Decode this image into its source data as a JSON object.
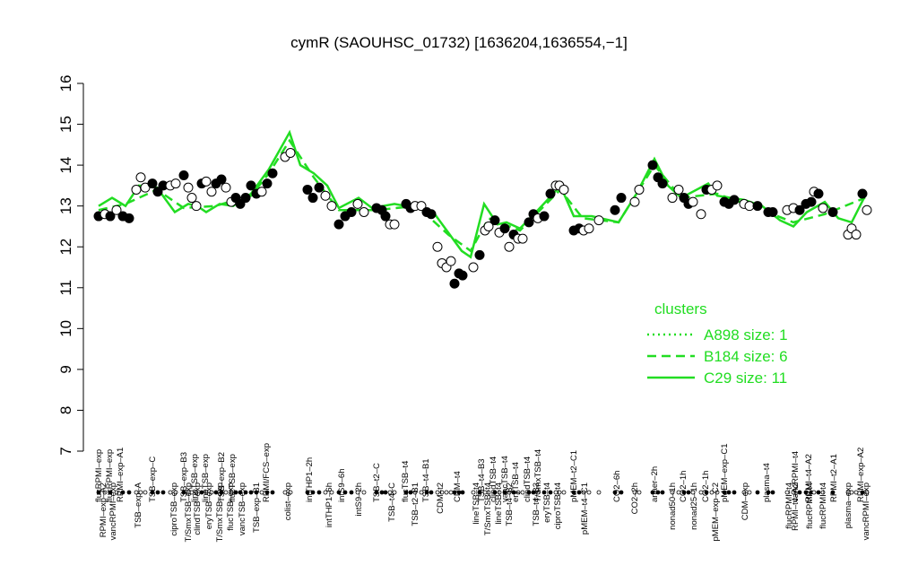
{
  "chart_data": {
    "type": "scatter",
    "title": "cymR (SAOUHSC_01732) [1636204,1636554,−1]",
    "xlim": [
      100,
      975
    ],
    "ylim": [
      7,
      16
    ],
    "yticks": [
      7,
      8,
      9,
      10,
      11,
      12,
      13,
      14,
      15,
      16
    ],
    "points": {
      "x": [
        110,
        117,
        123,
        130,
        137,
        144,
        152,
        157,
        162,
        170,
        176,
        182,
        190,
        196,
        205,
        210,
        214,
        219,
        225,
        230,
        236,
        241,
        247,
        252,
        258,
        263,
        268,
        274,
        280,
        286,
        292,
        298,
        304,
        318,
        324,
        343,
        349,
        356,
        363,
        370,
        378,
        385,
        392,
        399,
        406,
        420,
        426,
        430,
        435,
        440,
        453,
        458,
        463,
        470,
        476,
        481,
        488,
        493,
        498,
        503,
        507,
        512,
        516,
        528,
        535,
        541,
        545,
        552,
        557,
        563,
        568,
        573,
        578,
        583,
        590,
        595,
        600,
        607,
        614,
        620,
        624,
        629,
        640,
        646,
        651,
        657,
        668,
        686,
        693,
        708,
        713,
        728,
        734,
        739,
        750,
        757,
        763,
        768,
        773,
        782,
        788,
        794,
        800,
        808,
        813,
        819,
        830,
        836,
        845,
        857,
        862,
        878,
        885,
        892,
        899,
        905,
        908,
        913,
        918,
        929,
        946,
        950,
        955,
        962,
        967
      ],
      "values": [
        12.75,
        12.8,
        12.75,
        12.9,
        12.75,
        12.7,
        13.4,
        13.7,
        13.45,
        13.55,
        13.35,
        13.5,
        13.5,
        13.55,
        13.75,
        13.45,
        13.2,
        13.0,
        13.55,
        13.6,
        13.35,
        13.55,
        13.65,
        13.45,
        13.1,
        13.2,
        13.05,
        13.2,
        13.5,
        13.3,
        13.35,
        13.55,
        13.8,
        14.2,
        14.3,
        13.4,
        13.2,
        13.45,
        13.25,
        13.0,
        12.55,
        12.75,
        12.85,
        13.05,
        12.85,
        12.95,
        12.9,
        12.75,
        12.55,
        12.55,
        13.05,
        12.95,
        13.0,
        13.0,
        12.85,
        12.8,
        12.0,
        11.6,
        11.5,
        11.65,
        11.1,
        11.35,
        11.3,
        11.5,
        11.8,
        12.4,
        12.5,
        12.65,
        12.35,
        12.45,
        12.0,
        12.3,
        12.2,
        12.2,
        12.6,
        12.8,
        12.7,
        12.75,
        13.3,
        13.5,
        13.5,
        13.4,
        12.4,
        12.45,
        12.4,
        12.45,
        12.65,
        12.9,
        13.2,
        13.1,
        13.4,
        14.0,
        13.7,
        13.55,
        13.2,
        13.4,
        13.2,
        13.05,
        13.1,
        12.8,
        13.4,
        13.4,
        13.5,
        13.1,
        13.05,
        13.15,
        13.05,
        13.0,
        13.0,
        12.85,
        12.85,
        12.9,
        12.95,
        12.9,
        13.05,
        13.1,
        13.35,
        13.3,
        12.95,
        12.85,
        12.3,
        12.45,
        12.3,
        13.3,
        12.9
      ],
      "filled": [
        true,
        false,
        true,
        false,
        true,
        true,
        false,
        false,
        false,
        true,
        true,
        true,
        false,
        false,
        true,
        false,
        false,
        false,
        true,
        false,
        false,
        true,
        true,
        false,
        false,
        true,
        true,
        true,
        true,
        true,
        false,
        true,
        true,
        false,
        false,
        true,
        true,
        true,
        false,
        false,
        true,
        true,
        true,
        false,
        false,
        true,
        true,
        true,
        false,
        false,
        true,
        true,
        false,
        false,
        true,
        true,
        false,
        false,
        false,
        false,
        true,
        true,
        true,
        false,
        true,
        false,
        false,
        true,
        false,
        true,
        false,
        true,
        false,
        false,
        true,
        true,
        false,
        true,
        true,
        false,
        false,
        false,
        true,
        true,
        false,
        false,
        false,
        true,
        true,
        false,
        false,
        true,
        true,
        true,
        false,
        false,
        true,
        true,
        false,
        false,
        true,
        false,
        false,
        true,
        true,
        true,
        false,
        false,
        true,
        true,
        true,
        false,
        false,
        true,
        true,
        true,
        false,
        true,
        false,
        true,
        false,
        false,
        false,
        true,
        false
      ]
    },
    "series": [
      {
        "name": "C29 size: 11",
        "color": "#22dd22",
        "dash": "solid",
        "x": [
          110,
          125,
          140,
          155,
          175,
          195,
          210,
          220,
          230,
          245,
          260,
          280,
          300,
          323,
          335,
          350,
          365,
          378,
          400,
          415,
          440,
          465,
          485,
          500,
          515,
          525,
          540,
          555,
          565,
          580,
          600,
          615,
          625,
          640,
          660,
          690,
          710,
          730,
          745,
          760,
          790,
          800,
          830,
          850,
          870,
          885,
          900,
          920,
          935,
          950,
          965
        ],
        "values": [
          13.0,
          13.2,
          13.0,
          13.5,
          13.45,
          12.85,
          13.05,
          13.0,
          12.85,
          13.05,
          13.0,
          13.3,
          13.9,
          14.8,
          14.0,
          13.8,
          13.5,
          12.95,
          13.2,
          12.95,
          13.05,
          12.95,
          12.8,
          12.35,
          11.9,
          11.75,
          13.05,
          12.55,
          12.6,
          12.45,
          12.9,
          13.25,
          13.5,
          12.75,
          12.75,
          12.6,
          13.3,
          14.15,
          13.5,
          13.2,
          13.55,
          13.25,
          13.15,
          13.0,
          12.65,
          12.5,
          12.85,
          13.1,
          12.7,
          12.6,
          13.25
        ]
      },
      {
        "name": "B184 size: 6",
        "color": "#22dd22",
        "dash": "dashed",
        "x": [
          110,
          140,
          175,
          205,
          240,
          280,
          300,
          323,
          350,
          378,
          420,
          465,
          500,
          525,
          545,
          580,
          625,
          650,
          690,
          730,
          760,
          800,
          850,
          885,
          920,
          965
        ],
        "values": [
          12.9,
          13.05,
          13.4,
          12.95,
          13.0,
          13.25,
          13.8,
          14.6,
          13.7,
          12.9,
          12.9,
          13.0,
          12.3,
          11.9,
          12.7,
          12.4,
          13.4,
          12.7,
          12.6,
          14.0,
          13.2,
          13.3,
          12.9,
          12.6,
          12.8,
          13.2
        ]
      },
      {
        "name": "A898 size: 1",
        "color": "#22dd22",
        "dash": "dotted"
      }
    ],
    "legend_title": "clusters",
    "labels_top": [
      {
        "x": 115,
        "label": "RPMI–exp–A2"
      },
      {
        "x": 126,
        "label": "vancRPMI–exp"
      },
      {
        "x": 154,
        "label": "TSB–exp–A"
      },
      {
        "x": 194,
        "label": "ciproTSB–exp"
      },
      {
        "x": 210,
        "label": "T/SmxTSB–exp"
      },
      {
        "x": 220,
        "label": "clindTSB–exp"
      },
      {
        "x": 233,
        "label": "eryTSB–exp"
      },
      {
        "x": 245,
        "label": "T/SmxTSB–exp"
      },
      {
        "x": 257,
        "label": "flucTSB–exp"
      },
      {
        "x": 270,
        "label": "vancTSB–exp"
      },
      {
        "x": 286,
        "label": "TSB–exp–B1"
      },
      {
        "x": 321,
        "label": "colist–exp"
      },
      {
        "x": 367,
        "label": "intTHP1–6h"
      },
      {
        "x": 400,
        "label": "intS9–2h"
      },
      {
        "x": 437,
        "label": "TSB–t4–C"
      },
      {
        "x": 463,
        "label": "TSB–t2–B1"
      },
      {
        "x": 491,
        "label": "CDM–t2"
      },
      {
        "x": 531,
        "label": "lineTSB–t4"
      },
      {
        "x": 544,
        "label": "T/SmxTSB–t4"
      },
      {
        "x": 556,
        "label": "lineTSB–t4"
      },
      {
        "x": 568,
        "label": "TSB–t4–B2"
      },
      {
        "x": 598,
        "label": "TSB–t4–B3"
      },
      {
        "x": 610,
        "label": "eryTSB–t4"
      },
      {
        "x": 622,
        "label": "ciproTSB–t4"
      },
      {
        "x": 652,
        "label": "pMEM–t4–C1"
      },
      {
        "x": 708,
        "label": "CO2–2h"
      },
      {
        "x": 750,
        "label": "nonad50–1h"
      },
      {
        "x": 774,
        "label": "nonad25–1h"
      },
      {
        "x": 798,
        "label": "pMEM–exp–C2"
      },
      {
        "x": 831,
        "label": "CDM–exp"
      },
      {
        "x": 880,
        "label": "flucRPMI–t4"
      },
      {
        "x": 887,
        "label": "RPMI–t4–A2"
      },
      {
        "x": 903,
        "label": "flucRPMI–t4"
      },
      {
        "x": 918,
        "label": "flucRPMI–t4"
      },
      {
        "x": 946,
        "label": "plasma–exp"
      },
      {
        "x": 966,
        "label": "vancRPMI–exp"
      }
    ],
    "labels_bottom": [
      {
        "x": 110,
        "label": "flucRPMI–exp"
      },
      {
        "x": 122,
        "label": "flucRPMI–exp"
      },
      {
        "x": 134,
        "label": "RPMI–exp–A1"
      },
      {
        "x": 170,
        "label": "TSB–exp–C"
      },
      {
        "x": 205,
        "label": "TSB–exp–B3"
      },
      {
        "x": 217,
        "label": "lineTSB–exp"
      },
      {
        "x": 229,
        "label": "lineTSB–exp"
      },
      {
        "x": 247,
        "label": "TSB–exp–B2"
      },
      {
        "x": 259,
        "label": "flucTSB–exp"
      },
      {
        "x": 297,
        "label": "RPMI/FCS–exp"
      },
      {
        "x": 345,
        "label": "intTHP1–2h"
      },
      {
        "x": 381,
        "label": "intS9–6h"
      },
      {
        "x": 420,
        "label": "TSB–t2–C"
      },
      {
        "x": 452,
        "label": "flucTSB–t4"
      },
      {
        "x": 475,
        "label": "TSB–t4–B1"
      },
      {
        "x": 510,
        "label": "CDM–t4"
      },
      {
        "x": 537,
        "label": "TSB–t4–B3"
      },
      {
        "x": 550,
        "label": "clindTSB–t4"
      },
      {
        "x": 563,
        "label": "vancTSB–t4"
      },
      {
        "x": 575,
        "label": "eryTSB–t4"
      },
      {
        "x": 588,
        "label": "clindTSB–t4"
      },
      {
        "x": 600,
        "label": "T/SmxTSB–t4"
      },
      {
        "x": 640,
        "label": "pMEM–t2–C1"
      },
      {
        "x": 688,
        "label": "CO2–6h"
      },
      {
        "x": 730,
        "label": "anaer–2h"
      },
      {
        "x": 762,
        "label": "CO2–1h"
      },
      {
        "x": 787,
        "label": "CO2–1h"
      },
      {
        "x": 808,
        "label": "pMEM–exp–C1"
      },
      {
        "x": 855,
        "label": "plasma–t4"
      },
      {
        "x": 887,
        "label": "vancRPMI–t4"
      },
      {
        "x": 902,
        "label": "RPMI–t4–A2"
      },
      {
        "x": 930,
        "label": "RPMI–t2–A1"
      },
      {
        "x": 960,
        "label": "RPMI–exp–A2"
      }
    ]
  }
}
